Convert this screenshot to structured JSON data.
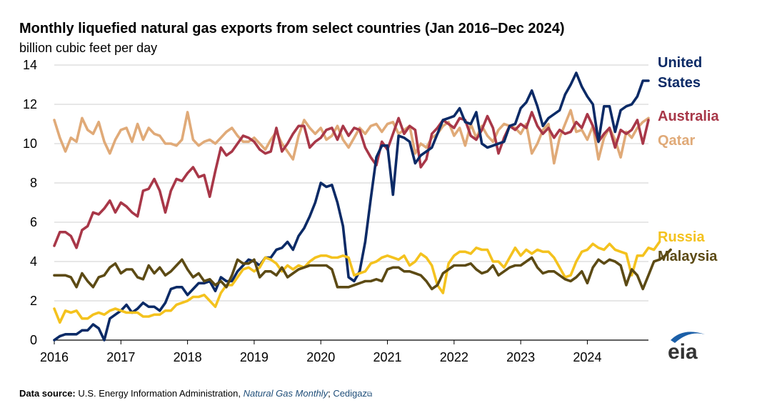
{
  "chart_data": {
    "type": "line",
    "title": "Monthly liquefied natural gas exports from select countries (Jan 2016–Dec 2024)",
    "subtitle": "billion cubic feet per day",
    "xlabel": "",
    "ylabel": "",
    "x_start_year": 2016,
    "points_per_year": 12,
    "xlim": [
      2016,
      2024.917
    ],
    "ylim": [
      0,
      14
    ],
    "yticks": [
      "0",
      "2",
      "4",
      "6",
      "8",
      "10",
      "12",
      "14"
    ],
    "xticks": [
      "2016",
      "2017",
      "2018",
      "2019",
      "2020",
      "2021",
      "2022",
      "2023",
      "2024"
    ],
    "grid": "horizontal",
    "legend": "direct labels at right end of lines",
    "series": [
      {
        "name": "Qatar",
        "display": "Qatar",
        "color": "#e0aa78",
        "values": [
          11.2,
          10.3,
          9.6,
          10.3,
          10.1,
          11.3,
          10.7,
          10.5,
          11.1,
          10.1,
          9.5,
          10.2,
          10.7,
          10.8,
          10.1,
          11.0,
          10.2,
          10.8,
          10.5,
          10.4,
          10.0,
          10.0,
          9.9,
          10.2,
          11.6,
          10.2,
          9.9,
          10.1,
          10.2,
          10.0,
          10.3,
          10.6,
          10.8,
          10.4,
          10.1,
          10.1,
          10.3,
          10.0,
          9.7,
          10.2,
          10.6,
          10.0,
          9.6,
          9.2,
          10.4,
          11.2,
          10.8,
          10.5,
          10.8,
          10.2,
          10.4,
          10.9,
          10.2,
          9.8,
          10.3,
          10.8,
          10.5,
          10.9,
          11.0,
          10.6,
          11.0,
          11.1,
          10.5,
          10.7,
          10.9,
          9.5,
          10.0,
          9.8,
          10.3,
          10.5,
          10.9,
          11.1,
          10.4,
          10.8,
          9.9,
          11.0,
          10.3,
          10.9,
          10.4,
          10.1,
          10.7,
          11.0,
          10.9,
          10.8,
          10.5,
          11.0,
          9.5,
          10.0,
          10.7,
          11.0,
          9.0,
          10.3,
          11.0,
          11.7,
          10.6,
          10.7,
          10.2,
          10.9,
          9.2,
          10.3,
          10.8,
          10.2,
          9.3,
          10.6,
          10.3,
          10.8,
          11.1,
          11.3
        ]
      },
      {
        "name": "Australia",
        "display": "Australia",
        "color": "#a83748",
        "values": [
          4.8,
          5.5,
          5.5,
          5.3,
          4.7,
          5.6,
          5.8,
          6.5,
          6.4,
          6.7,
          7.1,
          6.5,
          7.0,
          6.8,
          6.5,
          6.3,
          7.6,
          7.7,
          8.2,
          7.6,
          6.5,
          7.6,
          8.2,
          8.1,
          8.5,
          8.8,
          8.3,
          8.4,
          7.3,
          8.6,
          9.8,
          9.4,
          9.6,
          10.0,
          10.4,
          10.3,
          10.1,
          9.7,
          9.5,
          9.6,
          10.8,
          9.6,
          10.0,
          10.5,
          10.9,
          10.9,
          9.8,
          10.1,
          10.3,
          10.7,
          10.8,
          10.2,
          10.9,
          10.4,
          10.8,
          10.7,
          9.8,
          9.3,
          8.9,
          10.1,
          9.7,
          10.5,
          11.3,
          10.5,
          10.9,
          10.7,
          8.8,
          9.2,
          10.5,
          10.8,
          11.2,
          11.0,
          10.8,
          11.3,
          11.2,
          10.4,
          10.2,
          10.7,
          11.4,
          10.8,
          9.5,
          10.3,
          10.9,
          10.7,
          11.0,
          10.8,
          11.6,
          10.9,
          10.5,
          10.8,
          10.3,
          10.7,
          10.5,
          10.6,
          11.1,
          10.8,
          11.5,
          10.9,
          10.1,
          10.5,
          10.8,
          9.8,
          10.7,
          10.5,
          10.7,
          11.2,
          10.0,
          11.2
        ]
      },
      {
        "name": "United States",
        "display": "United\nStates",
        "color": "#0b2a66",
        "values": [
          0.0,
          0.2,
          0.3,
          0.3,
          0.3,
          0.5,
          0.5,
          0.8,
          0.6,
          0.0,
          1.1,
          1.3,
          1.5,
          1.8,
          1.4,
          1.6,
          1.9,
          1.7,
          1.7,
          1.5,
          1.9,
          2.6,
          2.7,
          2.7,
          2.3,
          2.6,
          2.9,
          2.9,
          3.0,
          2.5,
          3.2,
          3.0,
          3.0,
          3.5,
          3.8,
          4.1,
          4.0,
          3.8,
          4.2,
          4.2,
          4.6,
          4.7,
          5.0,
          4.6,
          5.3,
          5.7,
          6.3,
          7.0,
          8.0,
          7.8,
          7.9,
          7.0,
          5.8,
          3.2,
          3.0,
          3.5,
          5.0,
          7.2,
          9.3,
          9.9,
          9.9,
          7.4,
          10.4,
          10.3,
          10.1,
          9.0,
          9.4,
          9.6,
          9.8,
          10.5,
          11.2,
          11.3,
          11.4,
          11.8,
          11.1,
          11.0,
          11.6,
          10.0,
          9.8,
          9.9,
          10.0,
          10.1,
          10.9,
          11.0,
          11.8,
          12.1,
          12.7,
          11.9,
          10.9,
          11.3,
          11.5,
          11.7,
          12.5,
          13.0,
          13.6,
          12.9,
          12.4,
          12.0,
          10.1,
          11.9,
          11.9,
          10.6,
          11.7,
          11.9,
          12.0,
          12.4,
          13.2,
          13.2
        ]
      },
      {
        "name": "Russia",
        "display": "Russia",
        "color": "#f4c21e",
        "values": [
          1.6,
          0.9,
          1.5,
          1.4,
          1.5,
          1.1,
          1.1,
          1.3,
          1.4,
          1.3,
          1.5,
          1.6,
          1.5,
          1.4,
          1.4,
          1.4,
          1.2,
          1.2,
          1.3,
          1.3,
          1.5,
          1.5,
          1.8,
          1.9,
          2.0,
          2.2,
          2.2,
          2.3,
          2.0,
          1.7,
          2.4,
          2.8,
          2.8,
          3.2,
          3.6,
          3.7,
          3.5,
          3.7,
          4.2,
          4.1,
          3.9,
          3.5,
          3.8,
          3.6,
          3.8,
          3.7,
          4.0,
          4.2,
          4.3,
          4.3,
          4.2,
          4.2,
          4.3,
          4.2,
          3.3,
          3.4,
          3.5,
          3.9,
          4.0,
          4.2,
          4.3,
          4.2,
          4.1,
          4.3,
          3.8,
          4.0,
          4.4,
          4.2,
          3.8,
          2.8,
          2.4,
          3.9,
          4.3,
          4.5,
          4.5,
          4.4,
          4.7,
          4.6,
          4.6,
          4.0,
          4.0,
          3.7,
          4.2,
          4.7,
          4.3,
          4.6,
          4.4,
          4.6,
          4.5,
          4.5,
          4.2,
          3.7,
          3.2,
          3.3,
          4.0,
          4.5,
          4.6,
          4.9,
          4.7,
          4.6,
          4.9,
          4.6,
          4.5,
          4.4,
          3.3,
          4.3,
          4.3,
          4.7,
          4.6,
          5.0
        ]
      },
      {
        "name": "Malaysia",
        "display": "Malaysia",
        "color": "#5c4a14",
        "values": [
          3.3,
          3.3,
          3.3,
          3.2,
          2.7,
          3.4,
          3.0,
          2.7,
          3.2,
          3.3,
          3.7,
          3.9,
          3.4,
          3.6,
          3.6,
          3.2,
          3.1,
          3.8,
          3.4,
          3.7,
          3.3,
          3.5,
          3.8,
          4.1,
          3.6,
          3.2,
          3.4,
          3.0,
          3.1,
          2.8,
          3.0,
          2.7,
          3.3,
          4.1,
          3.9,
          3.9,
          4.1,
          3.2,
          3.5,
          3.5,
          3.3,
          3.7,
          3.2,
          3.4,
          3.6,
          3.7,
          3.8,
          3.8,
          3.8,
          3.8,
          3.6,
          2.7,
          2.7,
          2.7,
          2.8,
          2.9,
          3.0,
          3.0,
          3.1,
          3.0,
          3.6,
          3.7,
          3.7,
          3.5,
          3.5,
          3.4,
          3.3,
          3.0,
          2.6,
          2.8,
          3.4,
          3.6,
          3.8,
          3.8,
          3.8,
          3.9,
          3.6,
          3.4,
          3.5,
          3.8,
          3.3,
          3.5,
          3.7,
          3.8,
          3.8,
          4.0,
          4.2,
          3.7,
          3.4,
          3.5,
          3.5,
          3.3,
          3.1,
          3.0,
          3.2,
          3.5,
          2.9,
          3.7,
          4.1,
          3.9,
          4.1,
          4.0,
          3.8,
          2.8,
          3.6,
          3.3,
          2.6,
          3.3,
          4.0,
          4.1,
          4.3,
          4.6
        ]
      }
    ]
  },
  "footer": {
    "label": "Data source:",
    "source": " U.S. Energy Information Administration, ",
    "publication": "Natural Gas Monthly",
    "separator": "; ",
    "link": "Cedigaz",
    "link_icon": "external-link-icon"
  },
  "logo": {
    "text": "eia",
    "icon": "eia-logo-icon",
    "color": "#1b5fa8"
  }
}
